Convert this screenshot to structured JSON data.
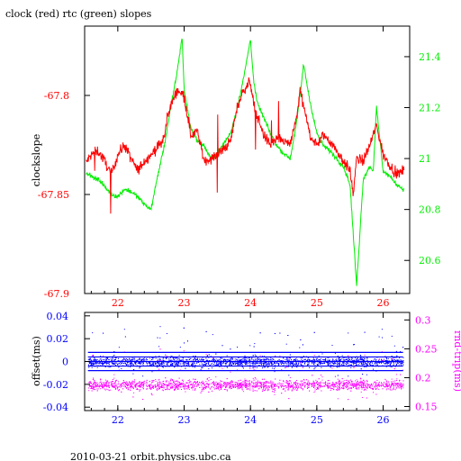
{
  "title": "clock (red) rtc (green) slopes",
  "footer": "2010-03-21  orbit.physics.ubc.ca",
  "colors": {
    "clock": "#ff0000",
    "rtc": "#00ee00",
    "offset": "#0000ff",
    "rnd_trip": "#ff00ff",
    "frame": "#000000"
  },
  "chart_data": [
    {
      "type": "line",
      "title": "clock (red) rtc (green) slopes",
      "xlabel": "",
      "ylabel": "clockslope",
      "y2label": "",
      "xlim": [
        21.5,
        26.4
      ],
      "ylim": [
        -67.9,
        -67.765
      ],
      "y2lim": [
        20.47,
        21.52
      ],
      "x_ticks": [
        "22",
        "23",
        "24",
        "25",
        "26"
      ],
      "y_ticks": [
        "-67.8",
        "-67.85",
        "-67.9"
      ],
      "y2_ticks": [
        "21.4",
        "21.2",
        "21",
        "20.8",
        "20.6"
      ],
      "series": [
        {
          "color": "red",
          "axis": "left",
          "x": [
            21.5,
            21.6,
            21.7,
            21.8,
            21.9,
            22.0,
            22.1,
            22.2,
            22.3,
            22.4,
            22.5,
            22.6,
            22.7,
            22.75,
            22.8,
            22.9,
            23.0,
            23.1,
            23.2,
            23.3,
            23.4,
            23.5,
            23.6,
            23.7,
            23.8,
            23.9,
            24.0,
            24.05,
            24.1,
            24.2,
            24.3,
            24.4,
            24.5,
            24.6,
            24.7,
            24.75,
            24.8,
            24.9,
            25.0,
            25.1,
            25.2,
            25.3,
            25.4,
            25.5,
            25.55,
            25.6,
            25.7,
            25.8,
            25.9,
            26.0,
            26.1,
            26.2,
            26.3
          ],
          "y": [
            -67.835,
            -67.83,
            -67.828,
            -67.833,
            -67.84,
            -67.83,
            -67.825,
            -67.832,
            -67.838,
            -67.833,
            -67.83,
            -67.826,
            -67.822,
            -67.81,
            -67.805,
            -67.797,
            -67.8,
            -67.82,
            -67.818,
            -67.833,
            -67.832,
            -67.83,
            -67.827,
            -67.823,
            -67.806,
            -67.797,
            -67.793,
            -67.805,
            -67.81,
            -67.82,
            -67.825,
            -67.822,
            -67.823,
            -67.825,
            -67.81,
            -67.797,
            -67.806,
            -67.82,
            -67.825,
            -67.82,
            -67.823,
            -67.828,
            -67.833,
            -67.838,
            -67.85,
            -67.832,
            -67.833,
            -67.825,
            -67.815,
            -67.83,
            -67.835,
            -67.84,
            -67.838
          ]
        },
        {
          "color": "green",
          "axis": "right",
          "x": [
            21.5,
            21.6,
            21.7,
            21.8,
            21.9,
            22.0,
            22.1,
            22.2,
            22.3,
            22.4,
            22.5,
            22.6,
            22.7,
            22.8,
            22.9,
            22.97,
            23.0,
            23.1,
            23.2,
            23.3,
            23.4,
            23.5,
            23.6,
            23.7,
            23.8,
            23.9,
            24.0,
            24.05,
            24.1,
            24.2,
            24.3,
            24.4,
            24.5,
            24.6,
            24.7,
            24.75,
            24.8,
            24.9,
            25.0,
            25.1,
            25.2,
            25.3,
            25.4,
            25.5,
            25.6,
            25.7,
            25.8,
            25.85,
            25.9,
            26.0,
            26.1,
            26.2,
            26.3
          ],
          "y": [
            20.95,
            20.93,
            20.92,
            20.89,
            20.86,
            20.85,
            20.88,
            20.87,
            20.85,
            20.82,
            20.8,
            20.93,
            21.05,
            21.2,
            21.35,
            21.48,
            21.27,
            21.12,
            21.07,
            21.05,
            21.0,
            21.02,
            21.06,
            21.1,
            21.2,
            21.32,
            21.47,
            21.3,
            21.22,
            21.16,
            21.1,
            21.05,
            21.02,
            21.0,
            21.15,
            21.25,
            21.37,
            21.22,
            21.1,
            21.05,
            21.03,
            21.0,
            20.97,
            20.9,
            20.5,
            20.92,
            20.97,
            20.95,
            21.2,
            20.95,
            20.93,
            20.9,
            20.88
          ]
        }
      ]
    },
    {
      "type": "scatter",
      "xlabel": "",
      "ylabel": "offset(ms)",
      "y2label": "rnd-trip(ms)",
      "xlim": [
        21.5,
        26.4
      ],
      "ylim": [
        -0.043,
        0.043
      ],
      "y2lim": [
        0.143,
        0.313
      ],
      "x_ticks": [
        "22",
        "23",
        "24",
        "25",
        "26"
      ],
      "y_ticks": [
        "0.04",
        "0.02",
        "0",
        "-0.02",
        "-0.04"
      ],
      "y2_ticks": [
        "0.3",
        "0.25",
        "0.2",
        "0.15"
      ],
      "series": [
        {
          "color": "blue",
          "axis": "left",
          "x_range": [
            21.55,
            26.3
          ],
          "y_center": 0.0,
          "y_spread": 0.008
        },
        {
          "color": "magenta",
          "axis": "right",
          "x_range": [
            21.55,
            26.3
          ],
          "y_center": 0.188,
          "y_spread": 0.016
        }
      ]
    }
  ]
}
